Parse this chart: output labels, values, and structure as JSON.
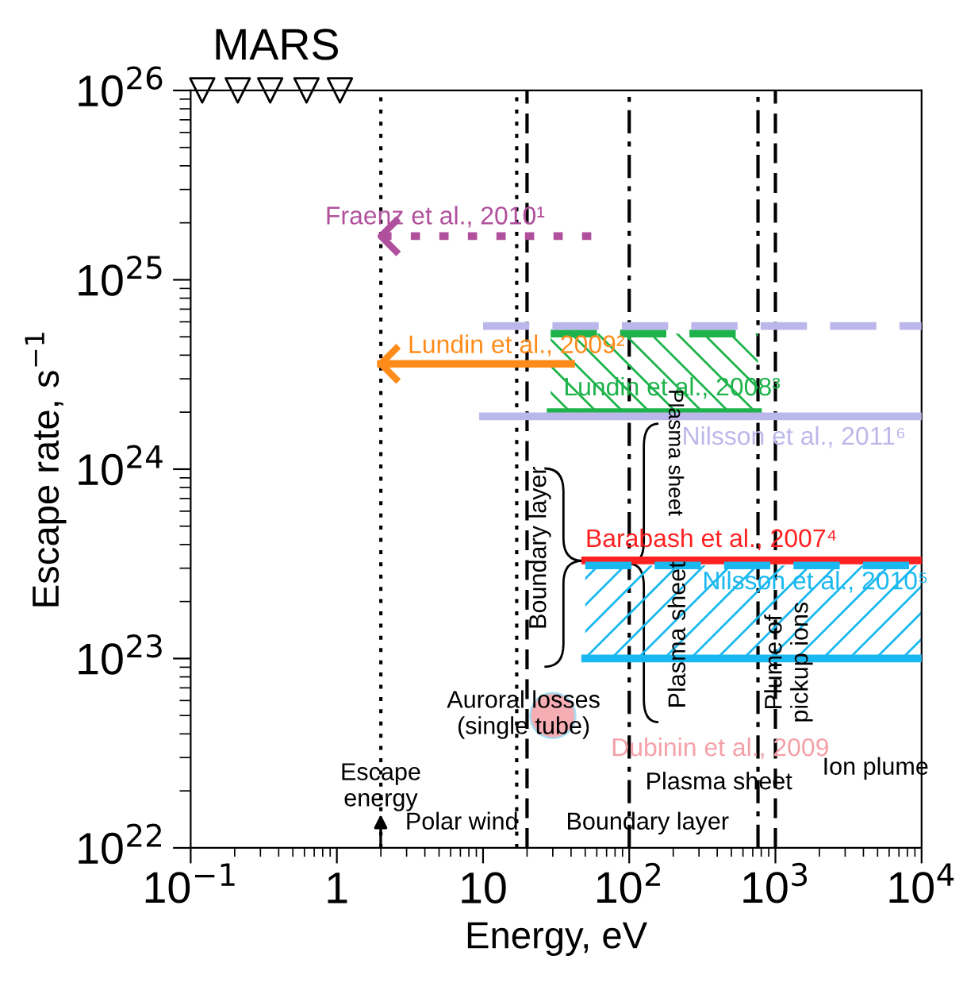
{
  "chart_data": {
    "type": "line",
    "title": "MARS",
    "xlabel": "Energy, eV",
    "ylabel": "Escape rate, s$^{−1}$",
    "log": "xy",
    "grid": false,
    "xlim": [
      0.1,
      10000
    ],
    "ylim": [
      1e+22,
      1e+26
    ],
    "xticks": [
      {
        "value": 0.1,
        "label": "10$^{−1}$"
      },
      1,
      10,
      {
        "value": 100,
        "label": "10$^{2}$"
      },
      {
        "value": 1000,
        "label": "10$^{3}$"
      },
      {
        "value": 10000,
        "label": "10$^{4}$"
      }
    ],
    "yticks": [
      {
        "value": 1e+22,
        "label": "10$^{22}$"
      },
      {
        "value": 1e+23,
        "label": "10$^{23}$"
      },
      {
        "value": 1e+24,
        "label": "10$^{24}$"
      },
      {
        "value": 1e+25,
        "label": "10$^{25}$"
      },
      {
        "value": 1e+26,
        "label": "10$^{26}$"
      }
    ],
    "series": [
      {
        "name": "Fraenz et al., 2010¹",
        "color": "#b0509c",
        "x": [
          55,
          2
        ],
        "values": [
          1.7e+25,
          1.7e+25
        ],
        "line_style": "dotted"
      },
      {
        "name": "Lundin et al., 2009²",
        "color": "#ff8c1a",
        "x": [
          40,
          2
        ],
        "values": [
          3.6e+24,
          3.6e+24
        ],
        "line_style": "solid"
      },
      {
        "name": "Lundin et al., 2008³",
        "color": "#1db34a",
        "x": [
          29,
          760
        ],
        "values": [
          5.2e+24,
          5.2e+24
        ],
        "line_style": "dashed"
      },
      {
        "color": "#1db34a",
        "x": [
          29,
          760
        ],
        "values": [
          2e+24,
          2e+24
        ],
        "line_style": "solid",
        "lower": [
          2e+24,
          2e+24
        ],
        "upper": [
          5.2e+24,
          5.2e+24
        ]
      },
      {
        "color": "#bcb7ea",
        "x": [
          10,
          10000
        ],
        "values": [
          5.7e+24,
          5.7e+24
        ],
        "line_style": "dashed"
      },
      {
        "name": "Nilsson et al., 2011⁶",
        "color": "#bcb7ea",
        "x": [
          10,
          10000
        ],
        "values": [
          1.9e+24,
          1.9e+24
        ],
        "line_style": "solid"
      },
      {
        "name": "Barabash et al., 2007⁴",
        "color": "#ff2020",
        "x": [
          50,
          10000
        ],
        "values": [
          3.3e+23,
          3.3e+23
        ],
        "line_style": "solid"
      },
      {
        "name": "Nilsson et al., 2010⁵",
        "color": "#1ab8f0",
        "x": [
          50,
          10000
        ],
        "values": [
          3.1e+23,
          3.1e+23
        ],
        "line_style": "dashed"
      },
      {
        "color": "#1ab8f0",
        "x": [
          50,
          10000
        ],
        "values": [
          1e+23,
          1e+23
        ],
        "line_style": "solid",
        "lower": [
          1e+23,
          1e+23
        ],
        "upper": [
          3.1e+23,
          3.1e+23
        ]
      },
      {
        "name": "Dubinin et al., 2009",
        "type": "scatter",
        "color": "#f4a0a8",
        "x": [
          30
        ],
        "values": [
          5e+22
        ],
        "marker": "circle"
      },
      {
        "type": "scatter",
        "color": "#000000",
        "x": [
          0.12,
          0.21,
          0.35,
          0.62,
          1.05
        ],
        "values": [
          1e+26,
          1e+26,
          1e+26,
          1e+26,
          1e+26
        ],
        "marker": "triangle"
      }
    ],
    "ref_lines": [
      {
        "axis": "x",
        "value": 2,
        "line_style": "dotted"
      },
      {
        "axis": "x",
        "value": 17,
        "line_style": "dotted"
      },
      {
        "axis": "x",
        "value": 20,
        "line_style": "dashed"
      },
      {
        "axis": "x",
        "value": 100,
        "line_style": "dashdot"
      },
      {
        "axis": "x",
        "value": 760,
        "line_style": "dashdot"
      },
      {
        "axis": "x",
        "value": 1000,
        "line_style": "dashed"
      }
    ],
    "annotations": [
      "Escape\nenergy",
      "Polar wind",
      "Boundary layer",
      "Plasma sheet",
      "Ion plume",
      "Auroral losses\n(single tube)",
      "Boundary layer",
      "Plasma sheet",
      "Plasma sheet",
      "Plume of\npickup ions"
    ]
  }
}
